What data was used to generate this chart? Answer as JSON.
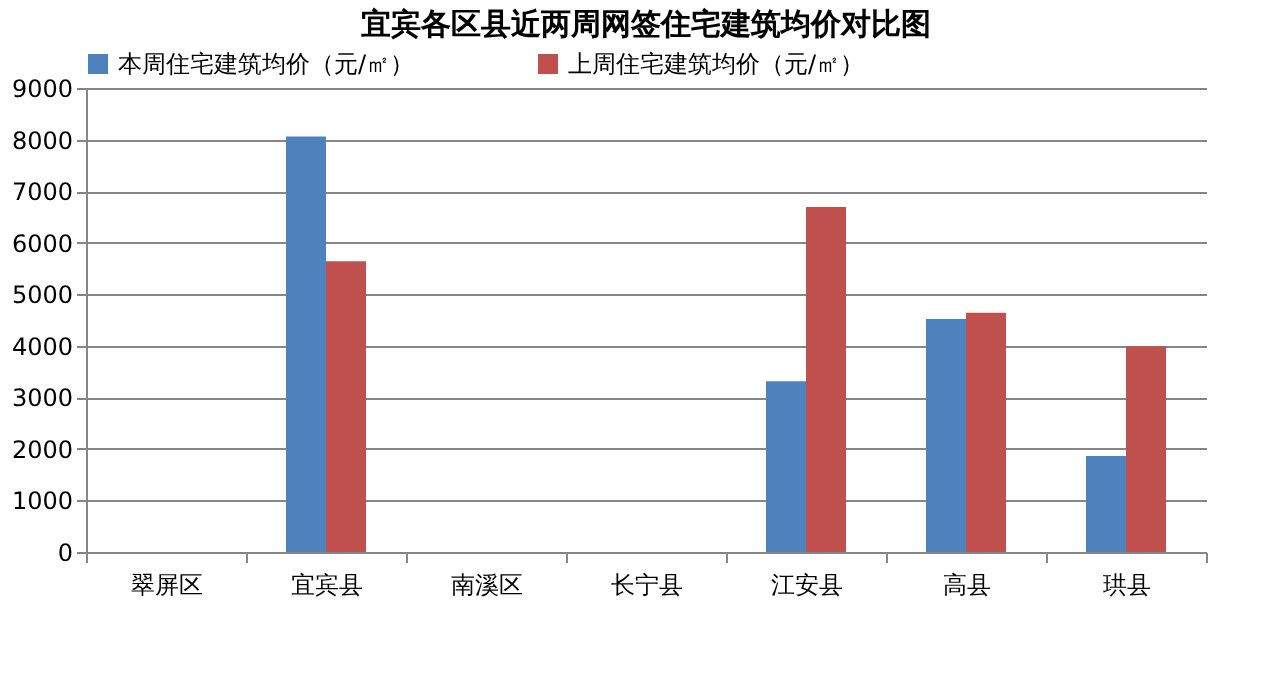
{
  "chart_data": {
    "type": "bar",
    "title": "宜宾各区县近两周网签住宅建筑均价对比图",
    "categories": [
      "翠屏区",
      "宜宾县",
      "南溪区",
      "长宁县",
      "江安县",
      "高县",
      "珙县"
    ],
    "series": [
      {
        "name": "本周住宅建筑均价（元/㎡）",
        "color": "#4f81bd",
        "values": [
          null,
          8060,
          null,
          null,
          3310,
          4520,
          1860
        ]
      },
      {
        "name": "上周住宅建筑均价（元/㎡）",
        "color": "#c0504d",
        "values": [
          null,
          5640,
          null,
          null,
          6690,
          4640,
          3990
        ]
      }
    ],
    "ylim": [
      0,
      9000
    ],
    "yticks": [
      0,
      1000,
      2000,
      3000,
      4000,
      5000,
      6000,
      7000,
      8000,
      9000
    ],
    "grid": "y",
    "legend": "top"
  }
}
